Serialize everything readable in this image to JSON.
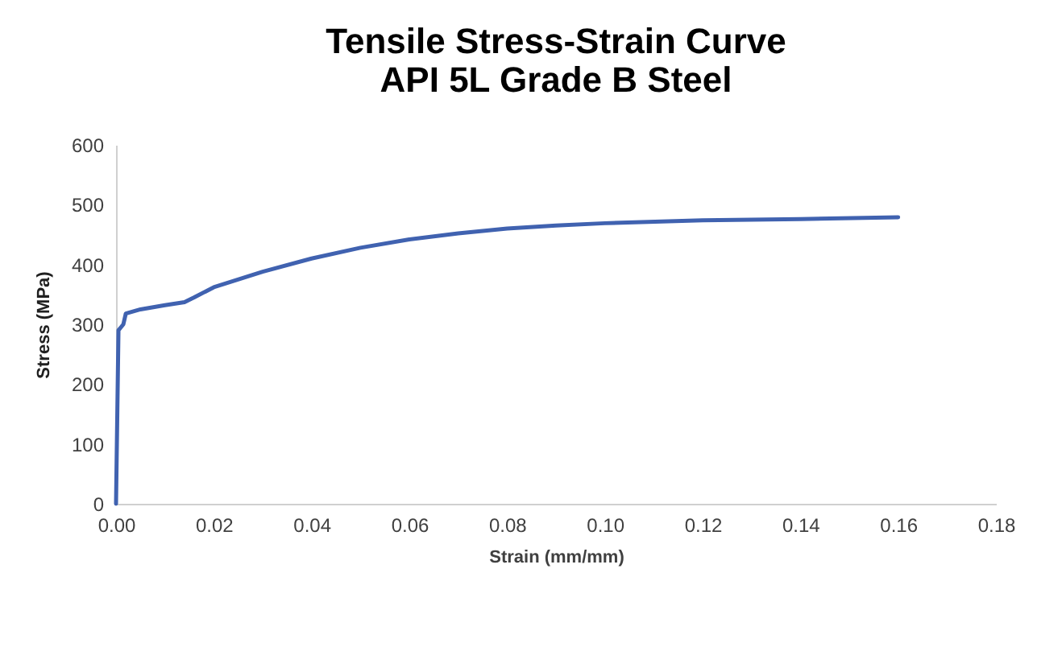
{
  "chart_data": {
    "type": "line",
    "title": [
      "Tensile Stress-Strain Curve",
      "API 5L Grade B Steel"
    ],
    "xlabel": "Strain (mm/mm)",
    "ylabel": "Stress (MPa)",
    "x": [
      0,
      0.0005,
      0.001,
      0.0015,
      0.002,
      0.005,
      0.01,
      0.014,
      0.016,
      0.02,
      0.03,
      0.04,
      0.05,
      0.06,
      0.07,
      0.08,
      0.09,
      0.1,
      0.12,
      0.14,
      0.16
    ],
    "series": [
      {
        "color": "#4062b0",
        "values": [
          0,
          290,
          295,
          300,
          318,
          325,
          332,
          337,
          345,
          362,
          388,
          410,
          428,
          442,
          452,
          460,
          465,
          469,
          474,
          476,
          479
        ]
      }
    ],
    "xlim": [
      0,
      0.18
    ],
    "xticks": [
      {
        "value": 0,
        "label": "0.00"
      },
      {
        "value": 0.02,
        "label": "0.02"
      },
      {
        "value": 0.04,
        "label": "0.04"
      },
      {
        "value": 0.06,
        "label": "0.06"
      },
      {
        "value": 0.08,
        "label": "0.08"
      },
      {
        "value": 0.1,
        "label": "0.10"
      },
      {
        "value": 0.12,
        "label": "0.12"
      },
      {
        "value": 0.14,
        "label": "0.14"
      },
      {
        "value": 0.16,
        "label": "0.16"
      },
      {
        "value": 0.18,
        "label": "0.18"
      }
    ],
    "ylim": [
      0,
      600
    ],
    "yticks": [
      0,
      100,
      200,
      300,
      400,
      500,
      600
    ],
    "grid": false
  }
}
